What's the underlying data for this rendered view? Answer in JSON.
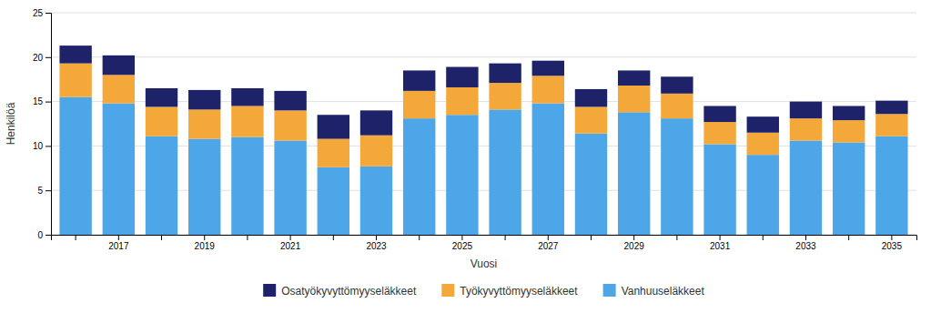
{
  "chart_data": {
    "type": "bar",
    "stacked": true,
    "grid": true,
    "legend": "bottom",
    "xlabel": "Vuosi",
    "ylabel": "Henkilöä",
    "categories": [
      null,
      "2017",
      null,
      "2019",
      null,
      "2021",
      null,
      "2023",
      null,
      "2025",
      null,
      "2027",
      null,
      "2029",
      null,
      "2031",
      null,
      "2033",
      null,
      "2035"
    ],
    "series": [
      {
        "name": "Vanhuuseläkkeet",
        "color": "#4da6e8",
        "values": [
          15.5,
          14.8,
          11.1,
          10.8,
          11.0,
          10.6,
          7.6,
          7.7,
          13.1,
          13.5,
          14.1,
          14.8,
          11.4,
          13.8,
          13.1,
          10.2,
          9.0,
          10.6,
          10.4,
          11.1
        ]
      },
      {
        "name": "Työkyvyttömyyseläkkeet",
        "color": "#f5a83a",
        "values": [
          3.8,
          3.2,
          3.3,
          3.3,
          3.5,
          3.4,
          3.2,
          3.5,
          3.1,
          3.1,
          3.0,
          3.1,
          3.0,
          3.0,
          2.8,
          2.5,
          2.5,
          2.5,
          2.5,
          2.5
        ]
      },
      {
        "name": "Osatyökyvyttömyyseläkkeet",
        "color": "#1e2369",
        "values": [
          2.0,
          2.2,
          2.1,
          2.2,
          2.0,
          2.2,
          2.7,
          2.8,
          2.3,
          2.3,
          2.2,
          1.7,
          2.0,
          1.7,
          1.9,
          1.8,
          1.8,
          1.9,
          1.6,
          1.5
        ]
      }
    ],
    "ylim": [
      0,
      25
    ],
    "yticks": [
      0,
      5,
      10,
      15,
      20,
      25
    ]
  }
}
